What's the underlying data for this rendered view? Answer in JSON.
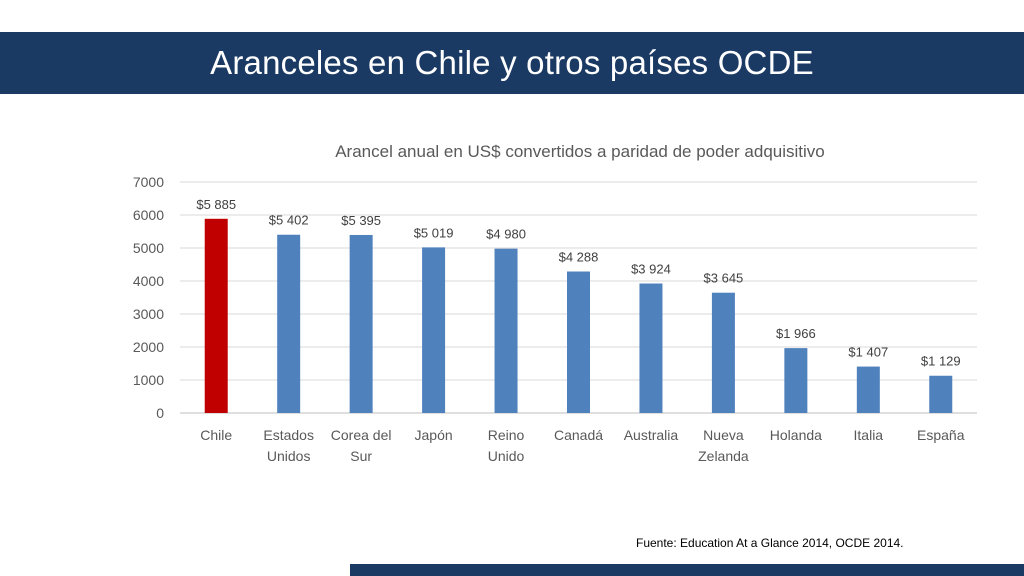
{
  "slide": {
    "title": "Aranceles en Chile y otros países OCDE",
    "source": "Fuente: Education At a Glance 2014, OCDE 2014.",
    "bar_color": "#1b3a63"
  },
  "chart_data": {
    "type": "bar",
    "title": "Arancel anual en US$ convertidos a paridad de poder adquisitivo",
    "xlabel": "",
    "ylabel": "",
    "categories": [
      [
        "Chile"
      ],
      [
        "Estados",
        "Unidos"
      ],
      [
        "Corea del",
        "Sur"
      ],
      [
        "Japón"
      ],
      [
        "Reino",
        "Unido"
      ],
      [
        "Canadá"
      ],
      [
        "Australia"
      ],
      [
        "Nueva",
        "Zelanda"
      ],
      [
        "Holanda"
      ],
      [
        "Italia"
      ],
      [
        "España"
      ]
    ],
    "values": [
      5885,
      5402,
      5395,
      5019,
      4980,
      4288,
      3924,
      3645,
      1966,
      1407,
      1129
    ],
    "data_labels": [
      "$5 885",
      "$5 402",
      "$5 395",
      "$5 019",
      "$4 980",
      "$4 288",
      "$3 924",
      "$3 645",
      "$1 966",
      "$1 407",
      "$1 129"
    ],
    "ylim": [
      0,
      7000
    ],
    "yticks": [
      0,
      1000,
      2000,
      3000,
      4000,
      5000,
      6000,
      7000
    ],
    "colors": {
      "default": "#4f81bd",
      "highlight": "#c00000",
      "grid": "#d9d9d9"
    },
    "highlight_index": 0,
    "grid": true,
    "legend": "none"
  }
}
